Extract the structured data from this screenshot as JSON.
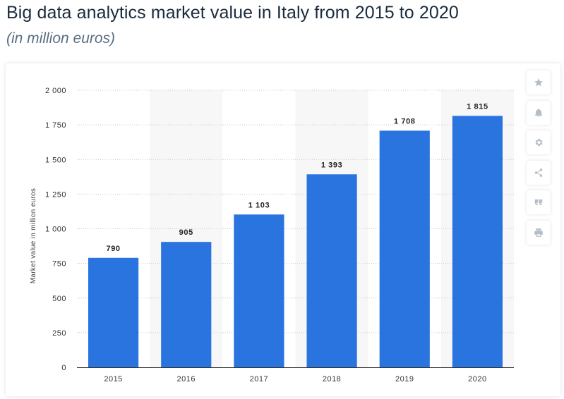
{
  "header": {
    "title": "Big data analytics market value in Italy from 2015 to 2020",
    "subtitle": "(in million euros)"
  },
  "toolbar": {
    "buttons": [
      {
        "name": "star-icon"
      },
      {
        "name": "bell-icon"
      },
      {
        "name": "gear-icon"
      },
      {
        "name": "share-icon"
      },
      {
        "name": "quote-icon"
      },
      {
        "name": "print-icon"
      }
    ]
  },
  "chart_data": {
    "type": "bar",
    "categories": [
      "2015",
      "2016",
      "2017",
      "2018",
      "2019",
      "2020"
    ],
    "values": [
      790,
      905,
      1103,
      1393,
      1708,
      1815
    ],
    "value_labels": [
      "790",
      "905",
      "1 103",
      "1 393",
      "1 708",
      "1 815"
    ],
    "ylabel": "Market value in million euros",
    "ylim": [
      0,
      2000
    ],
    "yticks": [
      0,
      250,
      500,
      750,
      1000,
      1250,
      1500,
      1750,
      2000
    ],
    "ytick_labels": [
      "0",
      "250",
      "500",
      "750",
      "1 000",
      "1 250",
      "1 500",
      "1 750",
      "2 000"
    ],
    "grid": true,
    "colors": {
      "bar": "#2a74e0",
      "band": "#f7f7f7",
      "grid": "#c8c8c8"
    }
  }
}
